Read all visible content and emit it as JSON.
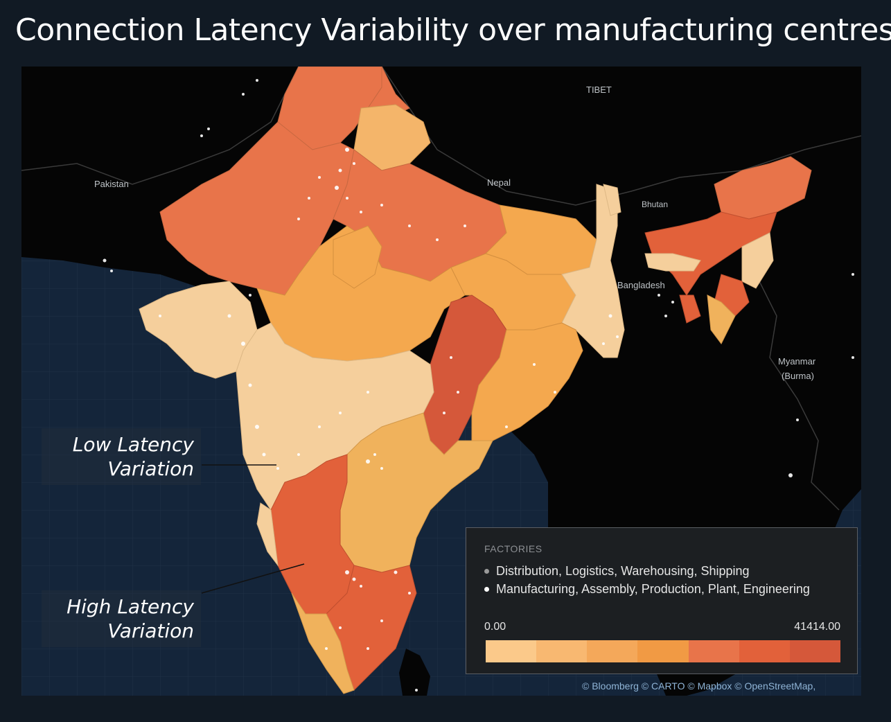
{
  "title": "Connection Latency Variability over manufacturing centres.",
  "map_labels": {
    "tibet": "TIBET",
    "pakistan": "Pakistan",
    "nepal": "Nepal",
    "bhutan": "Bhutan",
    "bangladesh": "Bangladesh",
    "myanmar_line1": "Myanmar",
    "myanmar_line2": "(Burma)"
  },
  "callouts": {
    "low": {
      "line1": "Low Latency",
      "line2": "Variation"
    },
    "high": {
      "line1": "High Latency",
      "line2": "Variation"
    }
  },
  "legend": {
    "title": "FACTORIES",
    "items": [
      {
        "label": "Distribution, Logistics, Warehousing, Shipping",
        "color": "#9a9a9a"
      },
      {
        "label": "Manufacturing, Assembly, Production, Plant, Engineering",
        "color": "#ffffff"
      }
    ],
    "range_min": "0.00",
    "range_max": "41414.00",
    "ramp_colors": [
      "#fbc98a",
      "#f8b871",
      "#f4a85a",
      "#f19a44",
      "#e8744a",
      "#e2613a",
      "#d5583a"
    ]
  },
  "attribution": "© Bloomberg © CARTO © Mapbox © OpenStreetMap,"
}
